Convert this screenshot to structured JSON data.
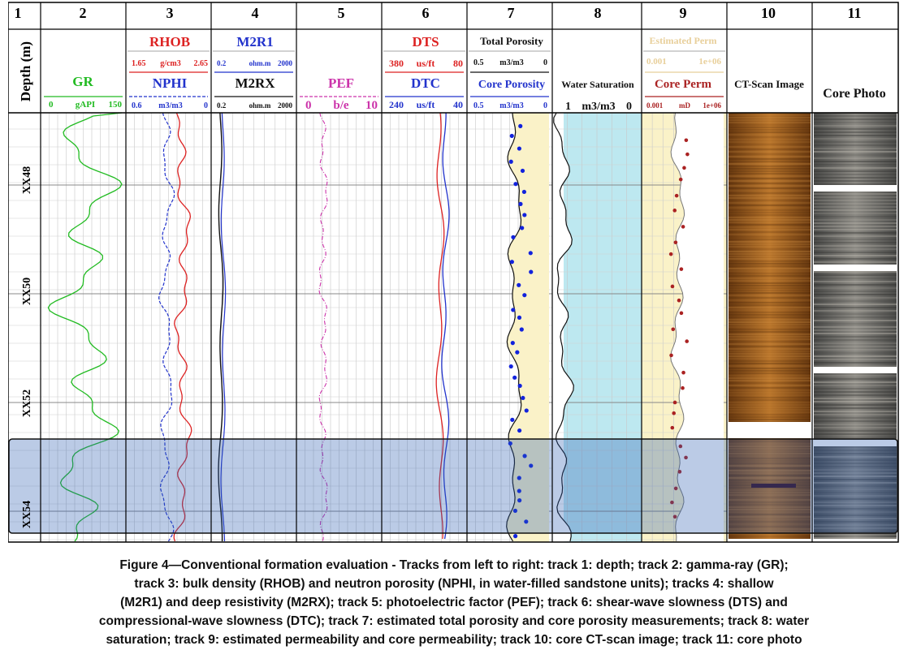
{
  "track_numbers": [
    "1",
    "2",
    "3",
    "4",
    "5",
    "6",
    "7",
    "8",
    "9",
    "10",
    "11"
  ],
  "headers": {
    "depth": "Depth (m)",
    "gr": {
      "name": "GR",
      "left": "0",
      "unit": "gAPI",
      "right": "150"
    },
    "rhob": {
      "name": "RHOB",
      "left": "1.65",
      "unit": "g/cm3",
      "right": "2.65"
    },
    "nphi": {
      "name": "NPHI",
      "left": "0.6",
      "unit": "m3/m3",
      "right": "0"
    },
    "m2r1": {
      "name": "M2R1",
      "left": "0.2",
      "unit": "ohm.m",
      "right": "2000"
    },
    "m2rx": {
      "name": "M2RX",
      "left": "0.2",
      "unit": "ohm.m",
      "right": "2000"
    },
    "pef": {
      "name": "PEF",
      "left": "0",
      "unit": "b/e",
      "right": "10"
    },
    "dts": {
      "name": "DTS",
      "left": "380",
      "unit": "us/ft",
      "right": "80"
    },
    "dtc": {
      "name": "DTC",
      "left": "240",
      "unit": "us/ft",
      "right": "40"
    },
    "tpor": {
      "name": "Total Porosity",
      "left": "0.5",
      "unit": "m3/m3",
      "right": "0"
    },
    "cpor": {
      "name": "Core Porosity",
      "left": "0.5",
      "unit": "m3/m3",
      "right": "0"
    },
    "sw": {
      "name": "Water Saturation",
      "left": "1",
      "unit": "m3/m3",
      "right": "0"
    },
    "eperm": {
      "name": "Estimated Perm",
      "left": "0.001",
      "right": "1e+06"
    },
    "cperm": {
      "name": "Core Perm",
      "left": "0.001",
      "unit": "mD",
      "right": "1e+06"
    },
    "ct": "CT-Scan Image",
    "photo": "Core Photo"
  },
  "depth_labels": [
    "XX48",
    "XX50",
    "XX52",
    "XX54"
  ],
  "colors": {
    "gr": "#22bb22",
    "rhob": "#dd2222",
    "nphi": "#2233cc",
    "m2r1": "#2233cc",
    "m2rx": "#111111",
    "pef": "#cc33aa",
    "dts": "#dd2222",
    "dtc": "#2233cc",
    "porosity_fill": "#faf2c8",
    "sw_fill": "#bde8f0",
    "core_points": "#1122dd",
    "perm_points": "#aa2222",
    "highlight": "#2a5db0"
  },
  "caption": [
    "Figure 4—Conventional formation evaluation - Tracks from left to right: track 1: depth; track 2: gamma-ray (GR);",
    "track 3: bulk density (RHOB) and neutron porosity (NPHI, in water-filled sandstone units); tracks 4: shallow",
    "(M2R1) and deep resistivity (M2RX); track 5: photoelectric factor (PEF); track 6: shear-wave slowness (DTS) and",
    "compressional-wave slowness (DTC); track 7: estimated total porosity and core porosity measurements; track 8: water",
    "saturation; track 9: estimated permeability and core permeability; track 10: core CT-scan image; track 11: core photo"
  ]
}
